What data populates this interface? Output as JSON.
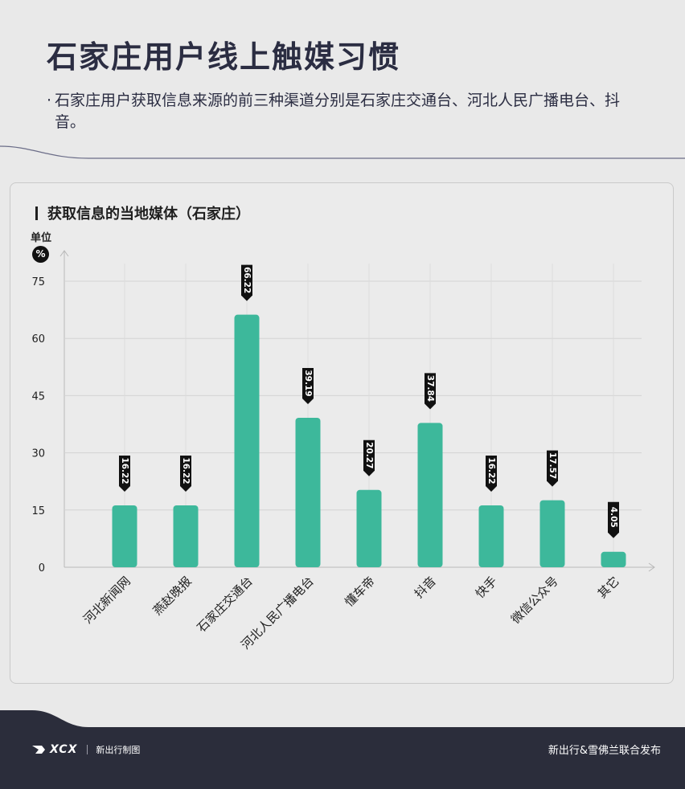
{
  "header": {
    "title": "石家庄用户线上触媒习惯",
    "bullet": "·",
    "description": "石家庄用户获取信息来源的前三种渠道分别是石家庄交通台、河北人民广播电台、抖音。"
  },
  "chart_data": {
    "type": "bar",
    "title": "获取信息的当地媒体（石家庄）",
    "unit_label": "单位",
    "unit": "%",
    "categories": [
      "河北新闻网",
      "燕赵晚报",
      "石家庄交通台",
      "河北人民广播电台",
      "懂车帝",
      "抖音",
      "快手",
      "微信公众号",
      "其它"
    ],
    "values": [
      16.22,
      16.22,
      66.22,
      39.19,
      20.27,
      37.84,
      16.22,
      17.57,
      4.05
    ],
    "value_labels": [
      "16.22",
      "16.22",
      "66.22",
      "39.19",
      "20.27",
      "37.84",
      "16.22",
      "17.57",
      "4.05"
    ],
    "yticks": [
      0,
      15,
      30,
      45,
      60,
      75
    ],
    "ylim": [
      0,
      75
    ],
    "grid": true,
    "bar_color": "#3db89b",
    "label_color": "#111111"
  },
  "footer": {
    "brand_logo": "XCX",
    "brand_tag": "新出行制图",
    "publisher": "新出行&雪佛兰联合发布",
    "bg_color": "#2b2d3b"
  }
}
